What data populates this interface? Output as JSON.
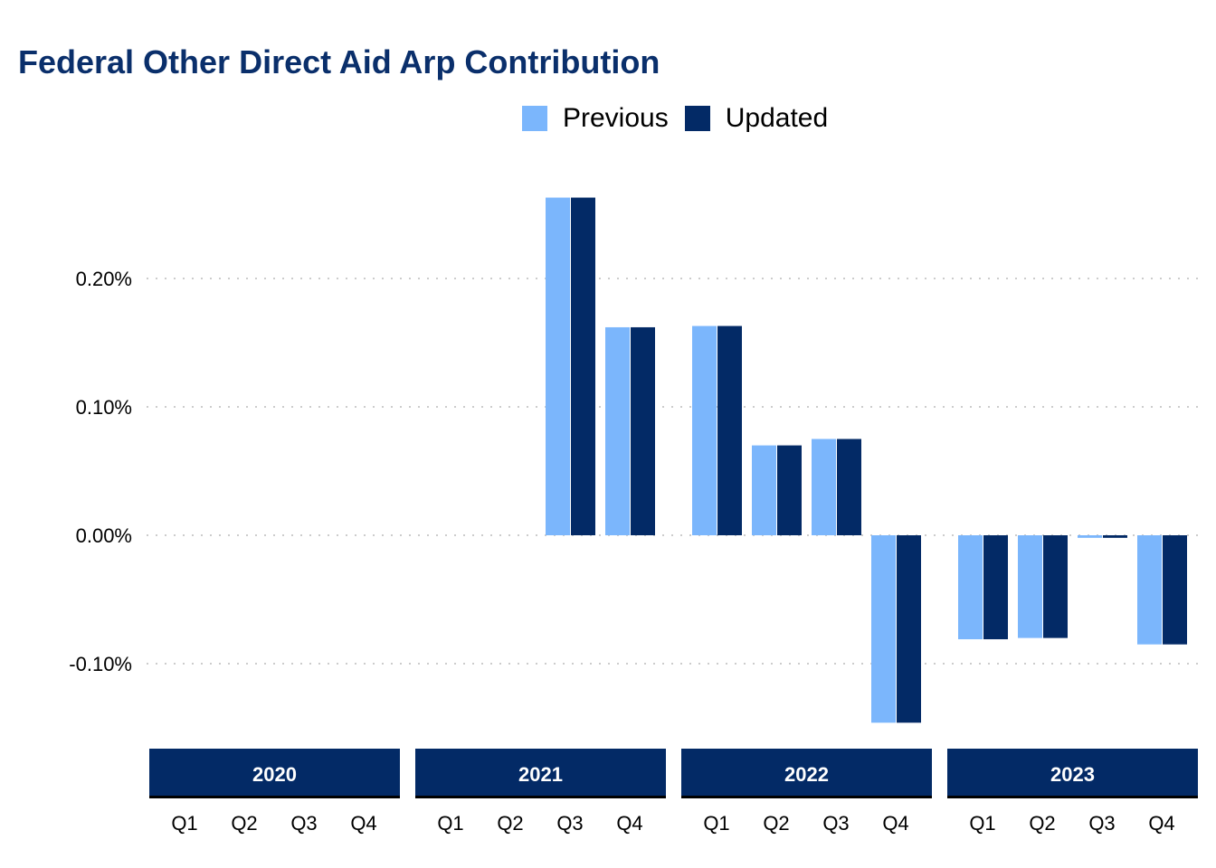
{
  "chart_data": {
    "type": "bar",
    "title": "Federal Other Direct Aid Arp Contribution",
    "xlabel": "",
    "ylabel": "",
    "ylim": [
      -0.16,
      0.27
    ],
    "yticks": [
      -0.1,
      0.0,
      0.1,
      0.2
    ],
    "ytick_labels": [
      "-0.10%",
      "0.00%",
      "0.10%",
      "0.20%"
    ],
    "grid": "horizontal-dotted",
    "legend_position": "top-center",
    "panels": [
      {
        "label": "2020",
        "categories": [
          "Q1",
          "Q2",
          "Q3",
          "Q4"
        ]
      },
      {
        "label": "2021",
        "categories": [
          "Q1",
          "Q2",
          "Q3",
          "Q4"
        ]
      },
      {
        "label": "2022",
        "categories": [
          "Q1",
          "Q2",
          "Q3",
          "Q4"
        ]
      },
      {
        "label": "2023",
        "categories": [
          "Q1",
          "Q2",
          "Q3",
          "Q4"
        ]
      }
    ],
    "series": [
      {
        "name": "Previous",
        "color": "#7bb6fc",
        "values": [
          [
            null,
            null,
            null,
            null
          ],
          [
            null,
            null,
            0.263,
            0.162
          ],
          [
            0.163,
            0.07,
            0.075,
            -0.146
          ],
          [
            -0.081,
            -0.08,
            -0.002,
            -0.085
          ]
        ]
      },
      {
        "name": "Updated",
        "color": "#032a66",
        "values": [
          [
            null,
            null,
            null,
            null
          ],
          [
            null,
            null,
            0.263,
            0.162
          ],
          [
            0.163,
            0.07,
            0.075,
            -0.146
          ],
          [
            -0.081,
            -0.08,
            -0.002,
            -0.085
          ]
        ]
      }
    ]
  },
  "colors": {
    "title": "#0a2f6b",
    "strip_bg": "#032a66",
    "strip_text": "#ffffff",
    "grid": "#cccccc"
  }
}
